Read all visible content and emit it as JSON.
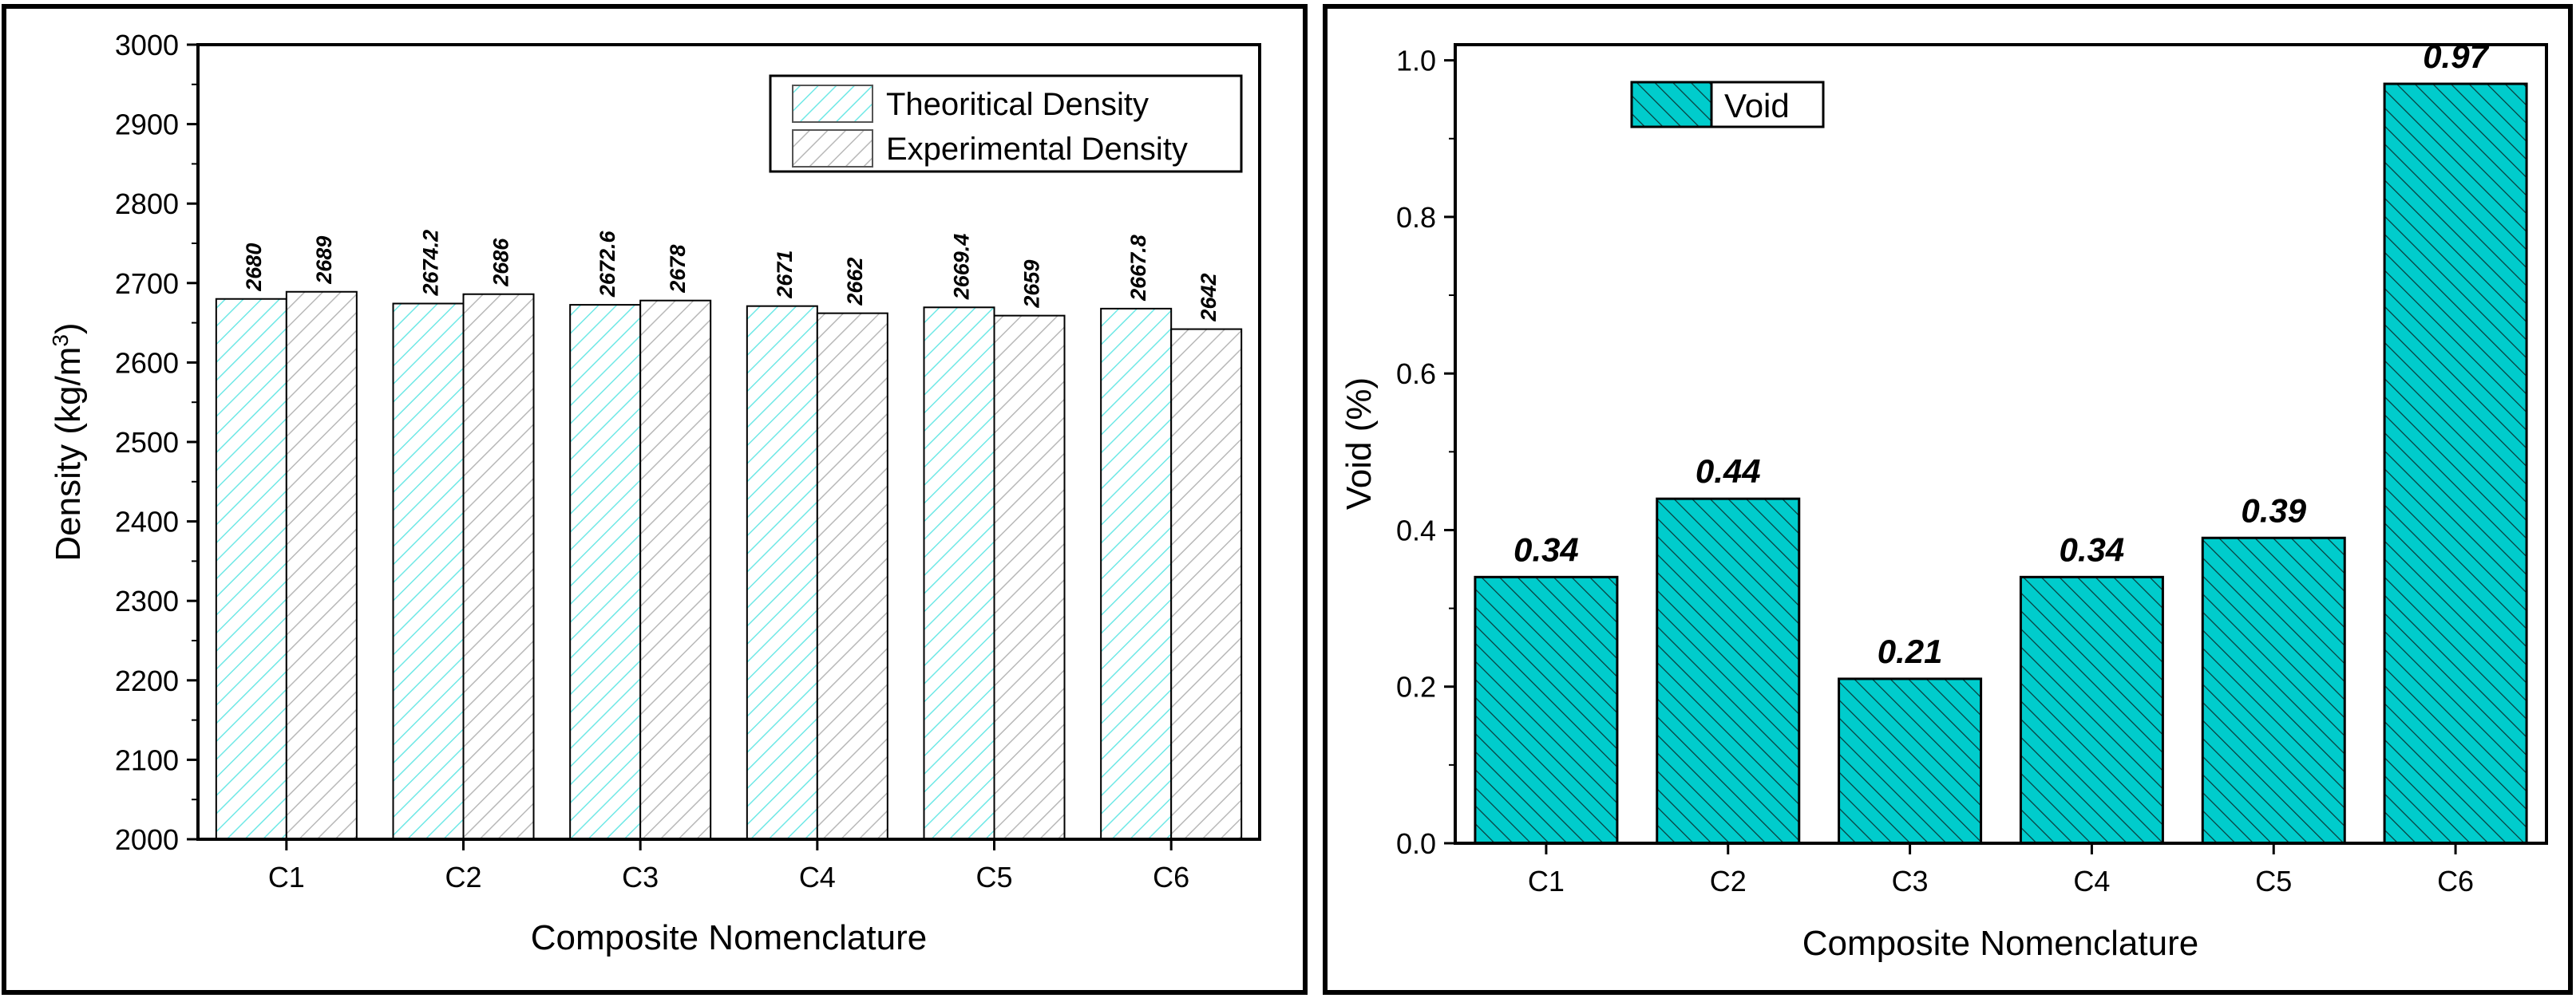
{
  "chart_data": [
    {
      "type": "bar",
      "title": "",
      "xlabel": "Composite Nomenclature",
      "ylabel": "Density (kg/m",
      "ylabel_sup": "3",
      "ylabel_close": ")",
      "ylim": [
        2000,
        3000
      ],
      "yticks": [
        2000,
        2100,
        2200,
        2300,
        2400,
        2500,
        2600,
        2700,
        2800,
        2900,
        3000
      ],
      "categories": [
        "C1",
        "C2",
        "C3",
        "C4",
        "C5",
        "C6"
      ],
      "series": [
        {
          "name": "Theoritical Density",
          "values": [
            2680,
            2674.2,
            2672.6,
            2671,
            2669.4,
            2667.8
          ],
          "color": "#7ff2ef",
          "labels": [
            "2680",
            "2674.2",
            "2672.6",
            "2671",
            "2669.4",
            "2667.8"
          ]
        },
        {
          "name": "Experimental Density",
          "values": [
            2689,
            2686,
            2678,
            2662,
            2659,
            2642
          ],
          "color": "#c9c9c9",
          "labels": [
            "2689",
            "2686",
            "2678",
            "2662",
            "2659",
            "2642"
          ]
        }
      ],
      "legend_position": "top-right"
    },
    {
      "type": "bar",
      "title": "",
      "xlabel": "Composite Nomenclature",
      "ylabel": "Void (%)",
      "ylim": [
        0,
        1.02
      ],
      "yticks": [
        "0.0",
        "0.2",
        "0.4",
        "0.6",
        "0.8",
        "1.0"
      ],
      "ytick_values": [
        0,
        0.2,
        0.4,
        0.6,
        0.8,
        1.0
      ],
      "categories": [
        "C1",
        "C2",
        "C3",
        "C4",
        "C5",
        "C6"
      ],
      "series": [
        {
          "name": "Void",
          "values": [
            0.34,
            0.44,
            0.21,
            0.34,
            0.39,
            0.97
          ],
          "color": "#00c8c8",
          "labels": [
            "0.34",
            "0.44",
            "0.21",
            "0.34",
            "0.39",
            "0.97"
          ]
        }
      ],
      "legend_position": "top-left"
    }
  ]
}
